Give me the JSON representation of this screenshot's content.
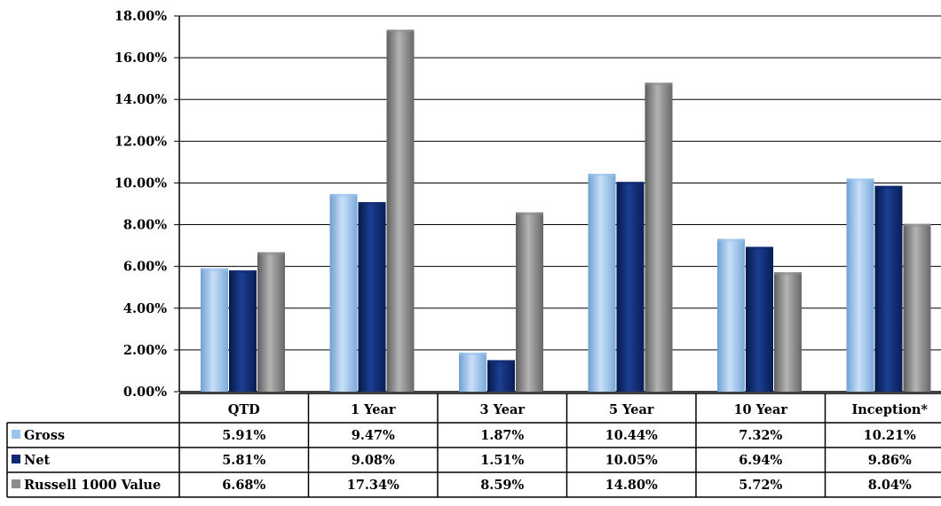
{
  "colors": {
    "gross": "#9cc4ec",
    "net": "#0f2a6e",
    "russell": "#8c8c8c",
    "grid": "#000000"
  },
  "chart_data": {
    "type": "bar",
    "categories": [
      "QTD",
      "1 Year",
      "3 Year",
      "5 Year",
      "10 Year",
      "Inception*"
    ],
    "series": [
      {
        "name": "Gross",
        "values": [
          5.91,
          9.47,
          1.87,
          10.44,
          7.32,
          10.21
        ]
      },
      {
        "name": "Net",
        "values": [
          5.81,
          9.08,
          1.51,
          10.05,
          6.94,
          9.86
        ]
      },
      {
        "name": "Russell 1000 Value",
        "values": [
          6.68,
          17.34,
          8.59,
          14.8,
          5.72,
          8.04
        ]
      }
    ],
    "table_values": [
      [
        "5.91%",
        "9.47%",
        "1.87%",
        "10.44%",
        "7.32%",
        "10.21%"
      ],
      [
        "5.81%",
        "9.08%",
        "1.51%",
        "10.05%",
        "6.94%",
        "9.86%"
      ],
      [
        "6.68%",
        "17.34%",
        "8.59%",
        "14.80%",
        "5.72%",
        "8.04%"
      ]
    ],
    "y_ticks": [
      "0.00%",
      "2.00%",
      "4.00%",
      "6.00%",
      "8.00%",
      "10.00%",
      "12.00%",
      "14.00%",
      "16.00%",
      "18.00%"
    ],
    "ylim": [
      0,
      18
    ],
    "grid": true,
    "legend": "data-table"
  }
}
